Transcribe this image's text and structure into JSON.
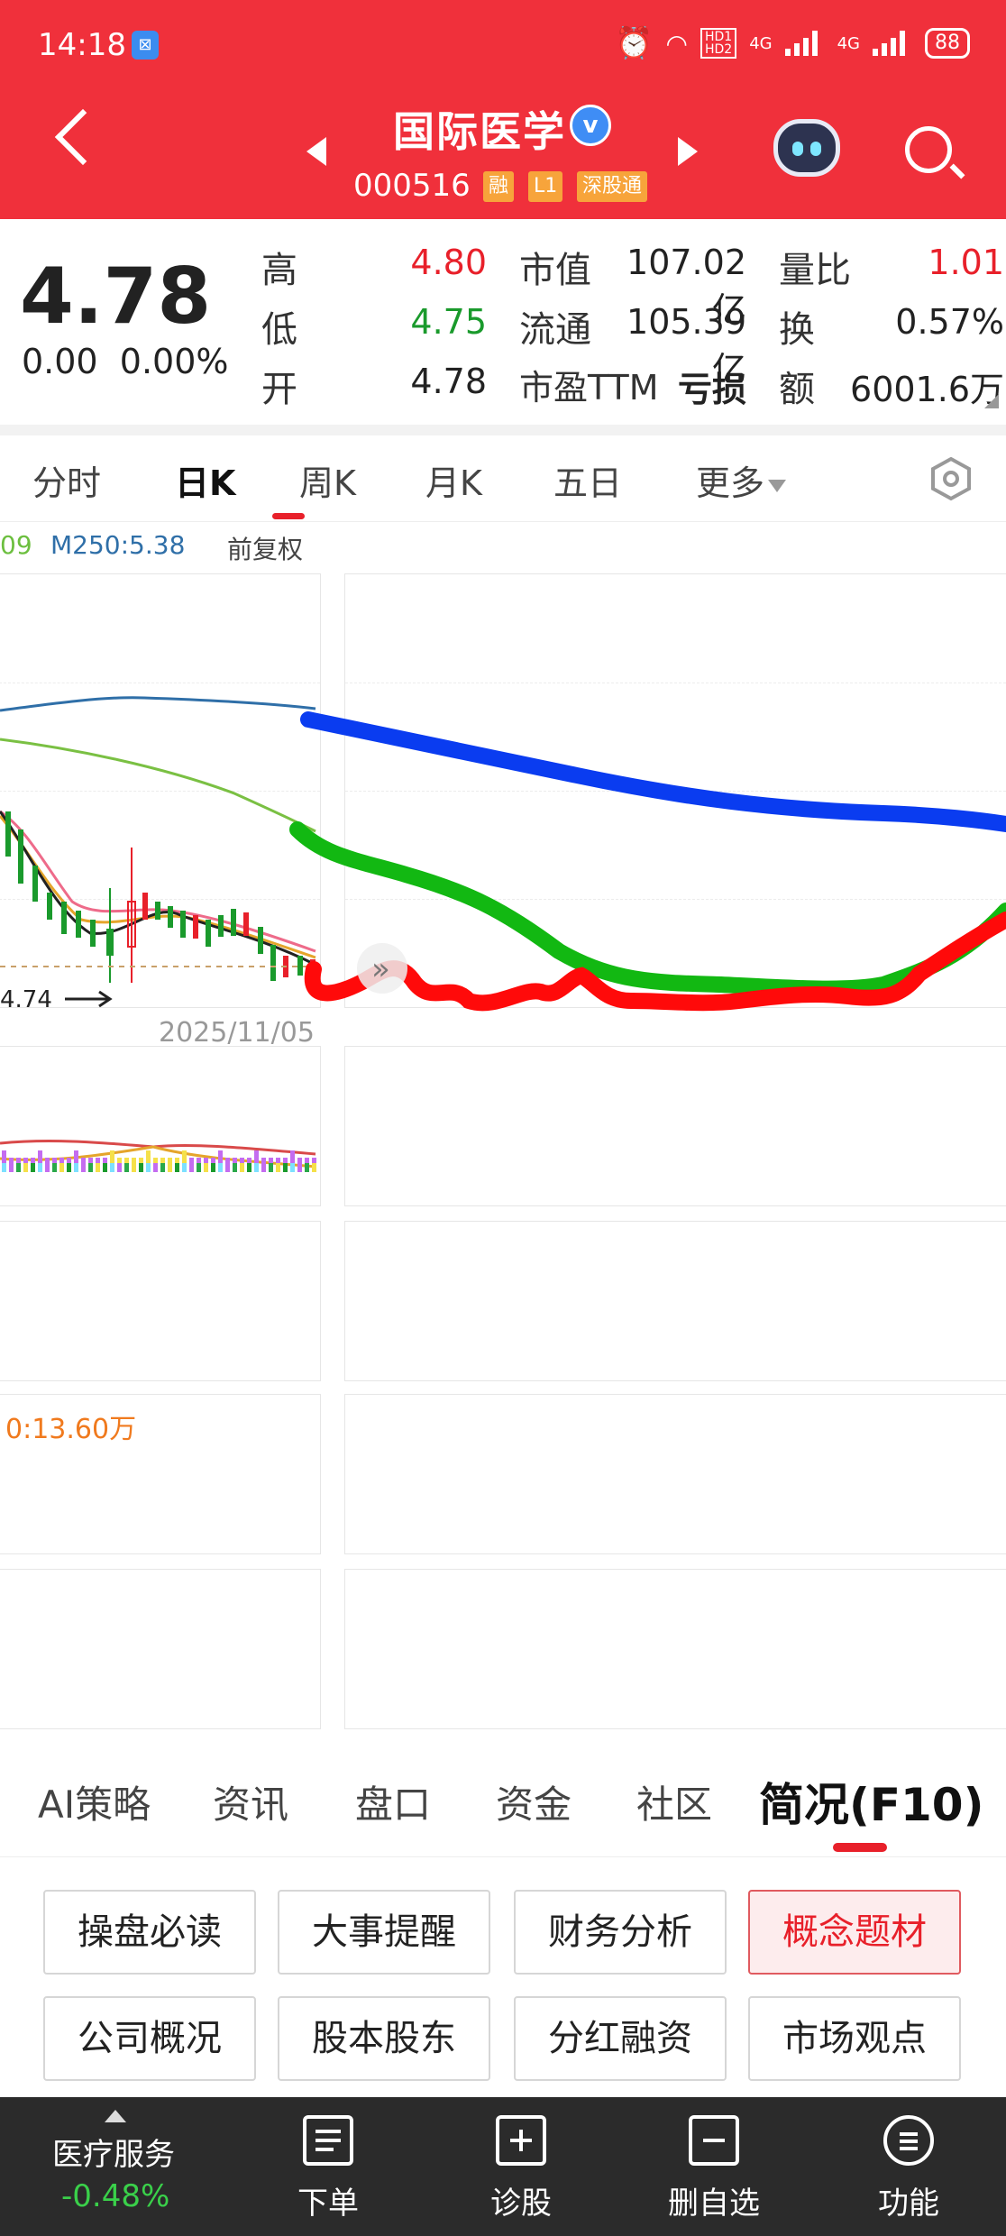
{
  "status_bar": {
    "time": "14:18",
    "network_1": "HD1\nHD2",
    "net_4g_1": "4G",
    "net_4g_2": "4G",
    "battery": "88"
  },
  "header": {
    "stock_name": "国际医学",
    "verified_mark": "v",
    "stock_code": "000516",
    "tags": [
      "融",
      "L1",
      "深股通"
    ]
  },
  "quote": {
    "price": "4.78",
    "change": "0.00",
    "change_pct": "0.00%",
    "rows": [
      {
        "label": "高",
        "value": "4.80",
        "label2": "市值",
        "value2": "107.02亿",
        "label3": "量比",
        "value3": "1.01"
      },
      {
        "label": "低",
        "value": "4.75",
        "label2": "流通",
        "value2": "105.39亿",
        "label3": "换",
        "value3": "0.57%"
      },
      {
        "label": "开",
        "value": "4.78",
        "label2": "市盈TTM",
        "value2": "亏损",
        "label3": "额",
        "value3": "6001.6万"
      }
    ]
  },
  "kline_tabs": {
    "items": [
      "分时",
      "日K",
      "周K",
      "月K",
      "五日",
      "更多"
    ],
    "active": "日K"
  },
  "ma_legend": {
    "ma_fragment": "09",
    "m250": "M250:5.38",
    "adjust": "前复权"
  },
  "chart": {
    "date": "2025/11/05",
    "low_price_label": "4.74",
    "volume_label": "0:13.60万"
  },
  "section_tabs": {
    "items": [
      "AI策略",
      "资讯",
      "盘口",
      "资金",
      "社区",
      "简况(F10)"
    ],
    "active": "简况(F10)"
  },
  "f10_buttons": [
    [
      "操盘必读",
      "大事提醒",
      "财务分析",
      "概念题材"
    ],
    [
      "公司概况",
      "股本股东",
      "分红融资",
      "市场观点"
    ]
  ],
  "f10_active": "概念题材",
  "bottom_bar": {
    "sector": "医疗服务",
    "sector_pct": "-0.48%",
    "items": [
      "下单",
      "诊股",
      "删自选",
      "功能"
    ]
  },
  "colors": {
    "header_red": "#f0303b",
    "up_red": "#e8202a",
    "down_green": "#1a9a2c",
    "annotation_blue": "#0a3cf0",
    "annotation_green": "#12b812",
    "annotation_red": "#ff0a0a"
  }
}
